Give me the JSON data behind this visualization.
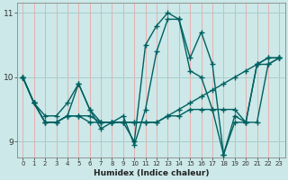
{
  "xlabel": "Humidex (Indice chaleur)",
  "ylabel": "",
  "xlim": [
    -0.5,
    23.5
  ],
  "ylim": [
    8.75,
    11.15
  ],
  "yticks": [
    9,
    10,
    11
  ],
  "xticks": [
    0,
    1,
    2,
    3,
    4,
    5,
    6,
    7,
    8,
    9,
    10,
    11,
    12,
    13,
    14,
    15,
    16,
    17,
    18,
    19,
    20,
    21,
    22,
    23
  ],
  "background_color": "#cce8e8",
  "vgrid_color": "#e8b0b0",
  "hgrid_color": "#aacccc",
  "line_color": "#006060",
  "line_width": 1.0,
  "marker": "+",
  "markersize": 4,
  "markeredgewidth": 1.0,
  "series": [
    [
      10.0,
      9.6,
      9.4,
      9.4,
      9.6,
      9.9,
      9.5,
      9.2,
      9.3,
      9.3,
      9.0,
      10.5,
      10.8,
      11.0,
      10.9,
      10.3,
      10.7,
      10.2,
      8.8,
      9.4,
      9.3,
      10.2,
      10.3,
      10.3
    ],
    [
      10.0,
      9.6,
      9.3,
      9.3,
      9.4,
      9.4,
      9.4,
      9.3,
      9.3,
      9.3,
      9.3,
      9.3,
      9.3,
      9.4,
      9.5,
      9.6,
      9.7,
      9.8,
      9.9,
      10.0,
      10.1,
      10.2,
      10.3,
      10.3
    ],
    [
      10.0,
      9.6,
      9.3,
      9.3,
      9.4,
      9.4,
      9.3,
      9.3,
      9.3,
      9.3,
      9.3,
      9.3,
      9.3,
      9.4,
      9.4,
      9.5,
      9.5,
      9.5,
      9.5,
      9.5,
      9.3,
      9.3,
      10.2,
      10.3
    ],
    [
      10.0,
      9.6,
      9.3,
      9.3,
      9.4,
      9.9,
      9.5,
      9.3,
      9.3,
      9.4,
      8.95,
      9.5,
      10.4,
      10.9,
      10.9,
      10.1,
      10.0,
      9.5,
      8.8,
      9.3,
      9.3,
      10.2,
      10.2,
      10.3
    ]
  ],
  "xlabel_fontsize": 6.5,
  "xlabel_fontweight": "bold",
  "xtick_fontsize": 5.0,
  "ytick_fontsize": 6.5
}
